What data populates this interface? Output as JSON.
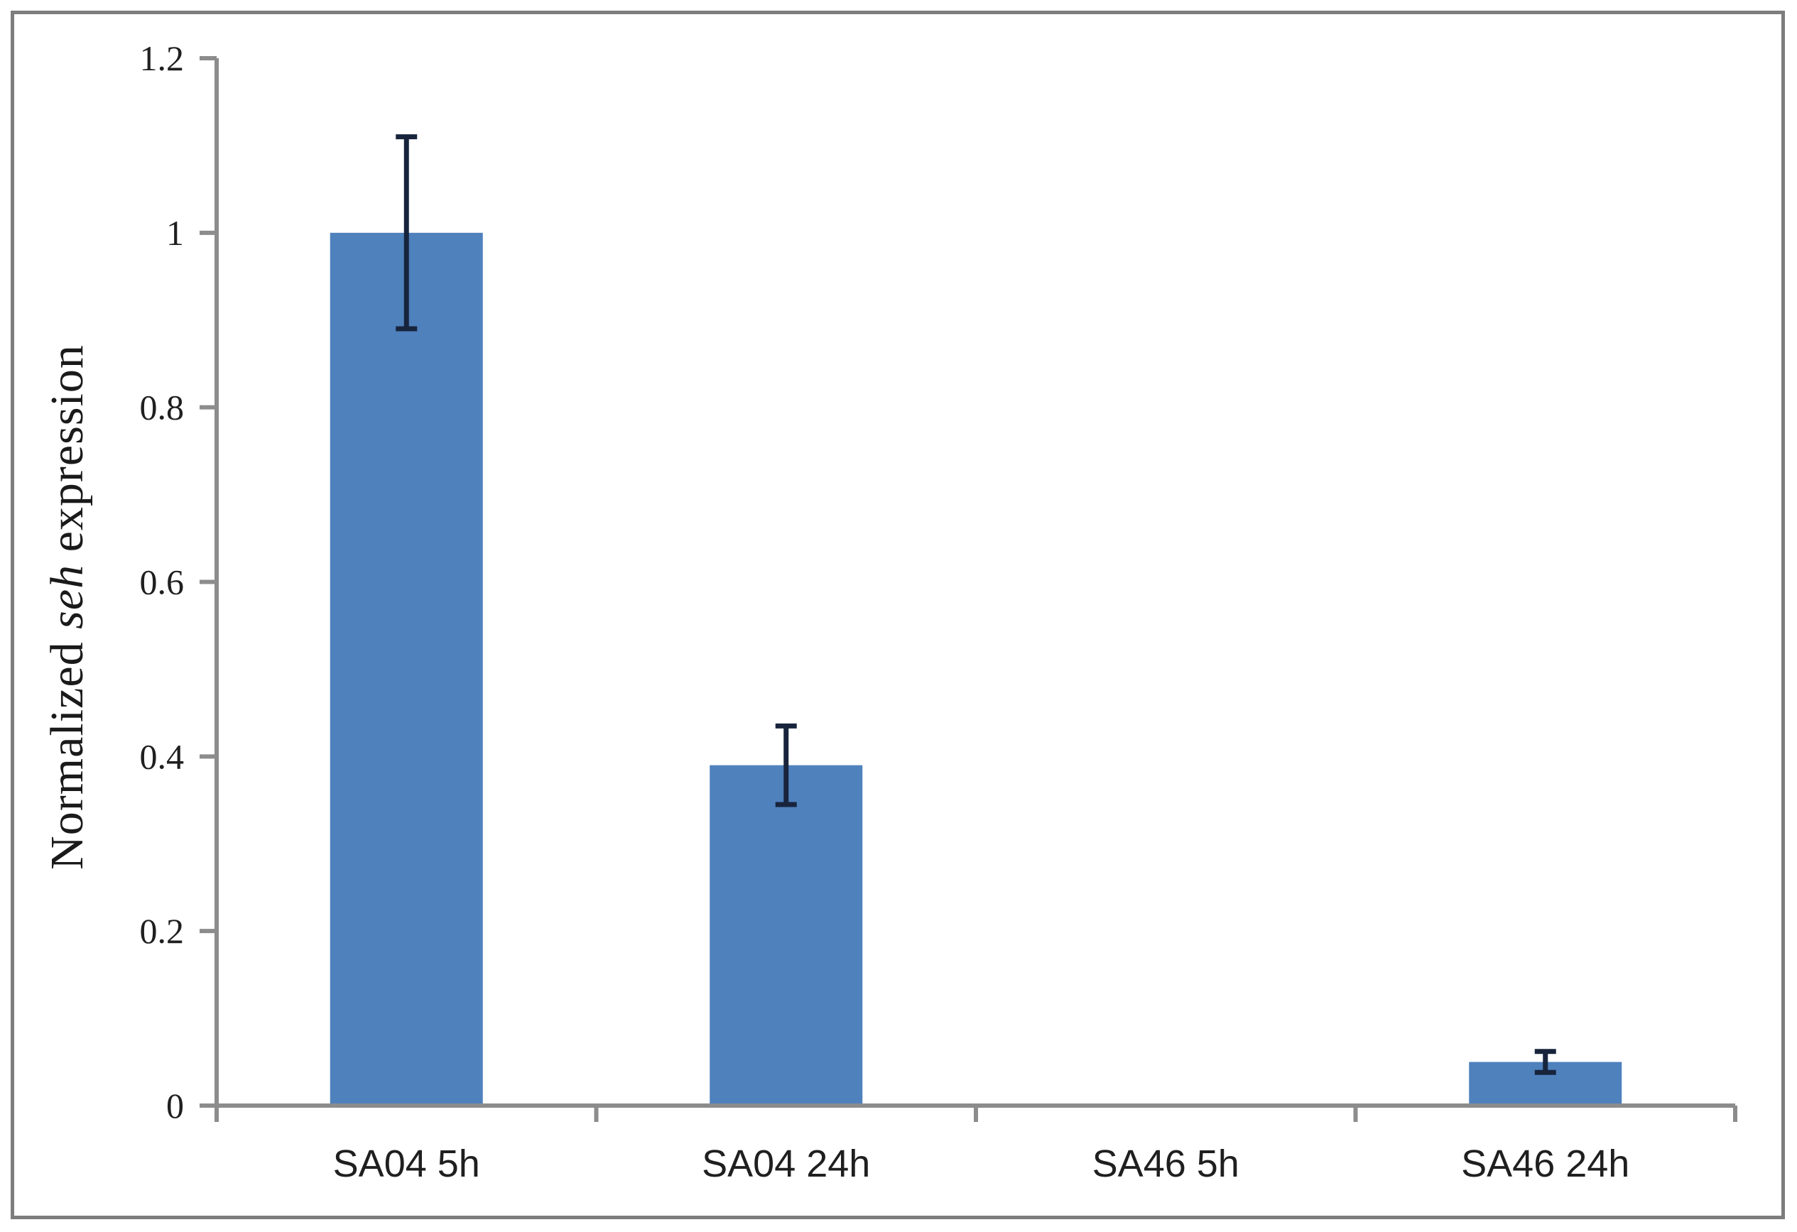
{
  "figure": {
    "background": "#ffffff",
    "frame_color": "#7d7d7d"
  },
  "chart_data": {
    "type": "bar",
    "title": "",
    "categories": [
      "SA04 5h",
      "SA04 24h",
      "SA46 5h",
      "SA46 24h"
    ],
    "values": [
      1.0,
      0.39,
      0,
      0.05
    ],
    "errors": [
      0.11,
      0.045,
      0,
      0.012
    ],
    "ylabel": {
      "prefix": "Normalized ",
      "italic": "seh",
      "suffix": " expression",
      "full_text": "Normalized seh expression"
    },
    "xlabel": "",
    "ylim": [
      0,
      1.2
    ],
    "ytick_step": 0.2,
    "ytick_labels": [
      "0",
      "0.2",
      "0.4",
      "0.6",
      "0.8",
      "1",
      "1.2"
    ],
    "grid": false,
    "legend": null,
    "bar_color": "#4F81BD",
    "axis_color": "#8C8C8C",
    "error_bar_color": "#17243C",
    "text_color": "#1f1f1f"
  }
}
